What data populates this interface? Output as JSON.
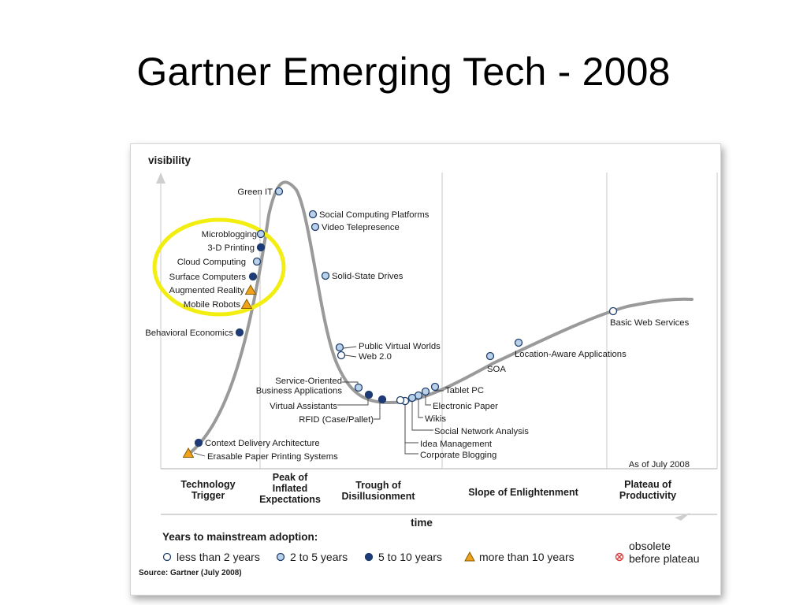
{
  "slide": {
    "title": "Gartner Emerging Tech - 2008"
  },
  "colors": {
    "curve": "#9a9a9a",
    "outline": "#1f3d6b",
    "open": "#ffffff",
    "two_to_five": "#b9d1ea",
    "five_to_ten": "#1f3a78",
    "more_than_ten": "#f0a21b",
    "highlight": "#f3ee12"
  },
  "chart": {
    "y_axis_label": "visibility",
    "x_axis_label": "time",
    "as_of": "As of July 2008",
    "source": "Source: Gartner (July 2008)",
    "phases": [
      [
        "Technology",
        "Trigger"
      ],
      [
        "Peak of",
        "Inflated",
        "Expectations"
      ],
      [
        "Trough of",
        "Disillusionment"
      ],
      [
        "Slope of Enlightenment"
      ],
      [
        "Plateau of",
        "Productivity"
      ]
    ],
    "legend": {
      "title": "Years to mainstream adoption:",
      "items": [
        {
          "marker": "open",
          "label": "less than 2 years"
        },
        {
          "marker": "two_to_five",
          "label": "2 to 5 years"
        },
        {
          "marker": "five_to_ten",
          "label": "5 to 10 years"
        },
        {
          "marker": "more_than_ten",
          "label": "more than 10 years"
        },
        {
          "marker": "obsolete",
          "label": [
            "obsolete",
            "before plateau"
          ]
        }
      ]
    },
    "technologies": [
      {
        "label": "Green IT",
        "adoption": "two_to_five"
      },
      {
        "label": "Social Computing Platforms",
        "adoption": "two_to_five"
      },
      {
        "label": "Video Telepresence",
        "adoption": "two_to_five"
      },
      {
        "label": "Microblogging",
        "adoption": "two_to_five"
      },
      {
        "label": "3-D Printing",
        "adoption": "five_to_ten"
      },
      {
        "label": "Cloud Computing",
        "adoption": "two_to_five"
      },
      {
        "label": "Surface Computers",
        "adoption": "five_to_ten"
      },
      {
        "label": "Augmented Reality",
        "adoption": "more_than_ten"
      },
      {
        "label": "Mobile Robots",
        "adoption": "more_than_ten"
      },
      {
        "label": "Solid-State Drives",
        "adoption": "two_to_five"
      },
      {
        "label": "Behavioral Economics",
        "adoption": "five_to_ten"
      },
      {
        "label": "Public Virtual Worlds",
        "adoption": "two_to_five"
      },
      {
        "label": "Web 2.0",
        "adoption": "open"
      },
      {
        "label": [
          "Service-Oriented",
          "Business Applications"
        ],
        "adoption": "two_to_five"
      },
      {
        "label": "Virtual Assistants",
        "adoption": "five_to_ten"
      },
      {
        "label": "RFID (Case/Pallet)",
        "adoption": "five_to_ten"
      },
      {
        "label": "Tablet PC",
        "adoption": "two_to_five"
      },
      {
        "label": "Electronic Paper",
        "adoption": "two_to_five"
      },
      {
        "label": "Wikis",
        "adoption": "two_to_five"
      },
      {
        "label": "Social Network Analysis",
        "adoption": "two_to_five"
      },
      {
        "label": "Idea Management",
        "adoption": "two_to_five"
      },
      {
        "label": "Corporate Blogging",
        "adoption": "open"
      },
      {
        "label": "SOA",
        "adoption": "two_to_five"
      },
      {
        "label": "Location-Aware Applications",
        "adoption": "two_to_five"
      },
      {
        "label": "Basic Web Services",
        "adoption": "open"
      },
      {
        "label": "Context Delivery Architecture",
        "adoption": "five_to_ten"
      },
      {
        "label": "Erasable Paper Printing Systems",
        "adoption": "more_than_ten"
      }
    ]
  }
}
